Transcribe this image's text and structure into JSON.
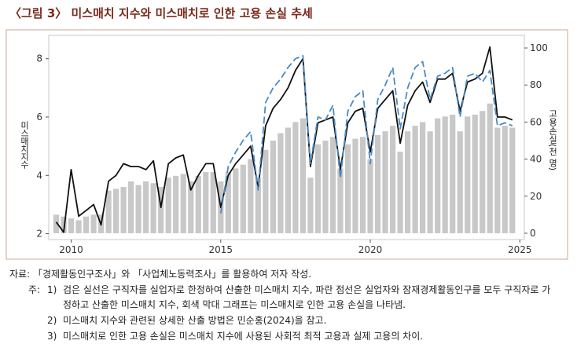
{
  "chart_data": {
    "type": "combo",
    "title": "〈그림 3〉 미스매치 지수와 미스매치로 인한 고용 손실 추세",
    "ylabel": "미스매치지수",
    "y2label": "고용손실(천 명)",
    "x": [
      2009.5,
      2009.75,
      2010,
      2010.25,
      2010.5,
      2010.75,
      2011,
      2011.25,
      2011.5,
      2011.75,
      2012,
      2012.25,
      2012.5,
      2012.75,
      2013,
      2013.25,
      2013.5,
      2013.75,
      2014,
      2014.25,
      2014.5,
      2014.75,
      2015,
      2015.25,
      2015.5,
      2015.75,
      2016,
      2016.25,
      2016.5,
      2016.75,
      2017,
      2017.25,
      2017.5,
      2017.75,
      2018,
      2018.25,
      2018.5,
      2018.75,
      2019,
      2019.25,
      2019.5,
      2019.75,
      2020,
      2020.25,
      2020.5,
      2020.75,
      2021,
      2021.25,
      2021.5,
      2021.75,
      2022,
      2022.25,
      2022.5,
      2022.75,
      2023,
      2023.25,
      2023.5,
      2023.75,
      2024,
      2024.25,
      2024.5,
      2024.75
    ],
    "xlim": [
      2009.25,
      2025.15
    ],
    "xticks": [
      2010,
      2015,
      2020,
      2025
    ],
    "ylim": [
      1.8,
      8.8
    ],
    "yticks": [
      2,
      4,
      6,
      8
    ],
    "y2lim": [
      -3.4,
      106.8
    ],
    "y2ticks": [
      0,
      20,
      40,
      60,
      80,
      100
    ],
    "series": [
      {
        "type": "bar",
        "axis": "y2",
        "color": "#c8c8c8",
        "values": [
          10,
          9,
          8,
          7,
          9,
          10,
          10,
          23,
          24,
          25,
          28,
          26,
          28,
          27,
          25,
          30,
          31,
          32,
          28,
          31,
          33,
          33,
          28,
          33,
          35,
          37,
          40,
          30,
          45,
          50,
          54,
          57,
          60,
          62,
          30,
          48,
          50,
          52,
          35,
          48,
          51,
          52,
          40,
          53,
          55,
          58,
          44,
          55,
          58,
          60,
          55,
          62,
          63,
          64,
          55,
          63,
          64,
          66,
          70,
          57,
          58,
          57
        ]
      },
      {
        "type": "line",
        "color": "#111111",
        "dashed": false,
        "values": [
          2.4,
          2.05,
          4.2,
          2.6,
          2.8,
          3.0,
          2.3,
          3.8,
          4.0,
          4.4,
          4.3,
          4.3,
          4.2,
          4.5,
          2.9,
          4.4,
          4.6,
          4.7,
          3.5,
          4.0,
          4.4,
          4.4,
          2.9,
          4.0,
          4.4,
          4.7,
          5.0,
          3.6,
          5.7,
          6.3,
          6.6,
          7.0,
          7.6,
          8.0,
          4.3,
          5.8,
          5.9,
          6.0,
          4.2,
          5.8,
          6.2,
          6.3,
          4.8,
          6.3,
          6.6,
          6.9,
          5.1,
          6.4,
          6.9,
          7.2,
          6.5,
          7.3,
          7.3,
          7.5,
          6.2,
          7.2,
          7.3,
          7.5,
          8.4,
          6.0,
          6.0,
          5.9
        ]
      },
      {
        "type": "line",
        "color": "#4a8ac4",
        "dashed": true,
        "values": [
          null,
          null,
          null,
          null,
          null,
          null,
          null,
          null,
          null,
          null,
          null,
          null,
          null,
          null,
          null,
          null,
          null,
          null,
          null,
          null,
          null,
          null,
          2.7,
          4.3,
          4.8,
          5.2,
          5.5,
          3.5,
          6.5,
          7.0,
          7.3,
          7.7,
          8.0,
          8.1,
          4.4,
          6.0,
          5.9,
          6.4,
          3.9,
          6.2,
          6.7,
          6.9,
          4.4,
          6.6,
          7.1,
          7.7,
          5.6,
          7.0,
          7.7,
          7.9,
          6.6,
          7.4,
          7.5,
          7.7,
          6.0,
          7.4,
          7.5,
          7.2,
          7.6,
          5.7,
          5.8,
          5.7
        ]
      }
    ]
  },
  "source": "자료: 「경제활동인구조사」와 「사업체노동력조사」를 활용하여 저자 작성.",
  "notes_label": "주:",
  "notes": [
    {
      "number": "1)",
      "lines": [
        "검은 실선은 구직자를 실업자로 한정하여 산출한 미스매치 지수, 파란 점선은 실업자와 잠재경제활동인구를 모두 구직자로 가",
        "정하고 산출한 미스매치 지수, 회색 막대 그래프는 미스매치로 인한 고용 손실을 나타냄."
      ]
    },
    {
      "number": "2)",
      "lines": [
        "미스매치 지수와 관련된 상세한 산출 방법은 민순홍(2024)을 참고."
      ]
    },
    {
      "number": "3)",
      "lines": [
        "미스매치로 인한 고용 손실은 미스매치 지수에 사용된 사회적 최적 고용과 실제 고용의 차이."
      ]
    }
  ]
}
